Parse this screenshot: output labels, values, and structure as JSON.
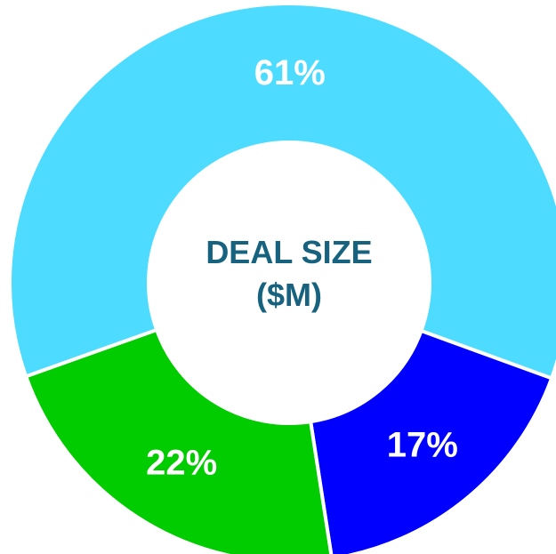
{
  "chart_data": {
    "type": "donut",
    "title": "DEAL SIZE ($M)",
    "values": [
      61,
      17,
      22
    ],
    "value_labels": [
      "61%",
      "17%",
      "22%"
    ],
    "colors": [
      "#4ddcff",
      "#0000ff",
      "#00cc00"
    ]
  }
}
